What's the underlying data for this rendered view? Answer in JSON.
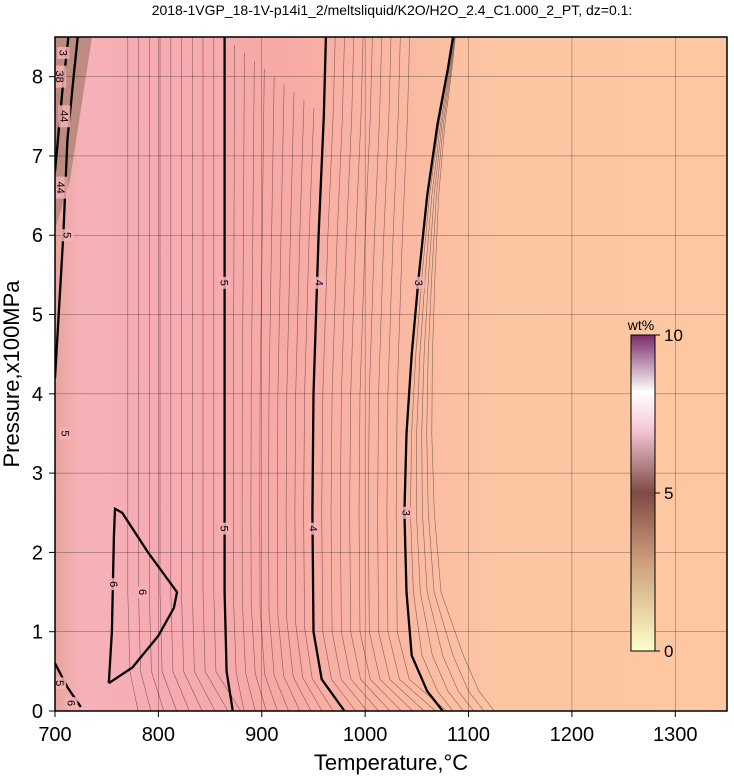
{
  "chart_data": {
    "type": "heatmap",
    "title": "2018-1VGP_18-1V-p14i1_2/meltsliquid/K2O/H2O_2.4_C1.000_2_PT, dz=0.1:",
    "xlabel": "Temperature,°C",
    "ylabel": "Pressure,x100MPa",
    "xlim": [
      700,
      1350
    ],
    "ylim": [
      0,
      8.5
    ],
    "x_ticks": [
      "700",
      "800",
      "900",
      "1000",
      "1100",
      "1200",
      "1300"
    ],
    "y_ticks": [
      "0",
      "1",
      "2",
      "3",
      "4",
      "5",
      "6",
      "7",
      "8"
    ],
    "grid": true,
    "colorbar": {
      "label": "wt%",
      "ticks": [
        "0",
        "5",
        "10"
      ],
      "range": [
        0,
        10
      ],
      "colors": [
        "#ffffc8",
        "#8a5a4a",
        "#ffffff",
        "#7a2a6a"
      ]
    },
    "bold_contours": [
      {
        "level": "6",
        "points": [
          [
            752,
            0.35
          ],
          [
            775,
            0.55
          ],
          [
            800,
            0.95
          ],
          [
            815,
            1.3
          ],
          [
            818,
            1.5
          ],
          [
            790,
            2.0
          ],
          [
            765,
            2.5
          ],
          [
            758,
            2.55
          ],
          [
            757,
            2.2
          ],
          [
            756,
            1.6
          ],
          [
            755,
            1.0
          ],
          [
            752,
            0.35
          ]
        ]
      },
      {
        "level": "5",
        "points": [
          [
            872,
            0
          ],
          [
            866,
            0.5
          ],
          [
            864,
            1.5
          ],
          [
            864,
            2.5
          ],
          [
            864,
            4
          ],
          [
            864,
            6
          ],
          [
            864,
            8.5
          ]
        ]
      },
      {
        "level": "4",
        "points": [
          [
            980,
            0
          ],
          [
            958,
            0.4
          ],
          [
            950,
            1
          ],
          [
            949,
            2.5
          ],
          [
            950,
            4
          ],
          [
            955,
            6
          ],
          [
            960,
            7.5
          ],
          [
            962,
            8.5
          ]
        ]
      },
      {
        "level": "3",
        "points": [
          [
            1075,
            0
          ],
          [
            1060,
            0.25
          ],
          [
            1045,
            0.7
          ],
          [
            1040,
            1.5
          ],
          [
            1038,
            2.5
          ],
          [
            1040,
            3.5
          ],
          [
            1045,
            4.5
          ],
          [
            1052,
            5.5
          ],
          [
            1060,
            6.5
          ],
          [
            1070,
            7.4
          ],
          [
            1080,
            8.1
          ],
          [
            1085,
            8.5
          ]
        ]
      },
      {
        "level": "5",
        "points": [
          [
            700,
            0.6
          ],
          [
            712,
            0.3
          ],
          [
            725,
            0.05
          ]
        ]
      },
      {
        "level": "",
        "points": [
          [
            700,
            4.2
          ],
          [
            708,
            6
          ],
          [
            712,
            7.2
          ],
          [
            718,
            8.0
          ],
          [
            722,
            8.5
          ]
        ]
      },
      {
        "level": "",
        "points": [
          [
            700,
            6.8
          ],
          [
            707,
            7.8
          ],
          [
            713,
            8.5
          ]
        ]
      }
    ],
    "contour_labels": [
      {
        "text": "6",
        "x": 757,
        "y": 1.6
      },
      {
        "text": "6",
        "x": 785,
        "y": 1.5
      },
      {
        "text": "5",
        "x": 864,
        "y": 5.4
      },
      {
        "text": "5",
        "x": 864,
        "y": 2.3
      },
      {
        "text": "4",
        "x": 956,
        "y": 5.4
      },
      {
        "text": "4",
        "x": 950,
        "y": 2.3
      },
      {
        "text": "3",
        "x": 1052,
        "y": 5.4
      },
      {
        "text": "3",
        "x": 1040,
        "y": 2.5
      },
      {
        "text": "5",
        "x": 710,
        "y": 3.5
      },
      {
        "text": "5",
        "x": 712,
        "y": 6.0
      },
      {
        "text": "44",
        "x": 706,
        "y": 6.6
      },
      {
        "text": "44",
        "x": 709,
        "y": 7.5
      },
      {
        "text": "38",
        "x": 705,
        "y": 8.0
      },
      {
        "text": "3",
        "x": 708,
        "y": 8.3
      },
      {
        "text": "5",
        "x": 705,
        "y": 0.35
      },
      {
        "text": "6",
        "x": 716,
        "y": 0.1
      }
    ]
  }
}
